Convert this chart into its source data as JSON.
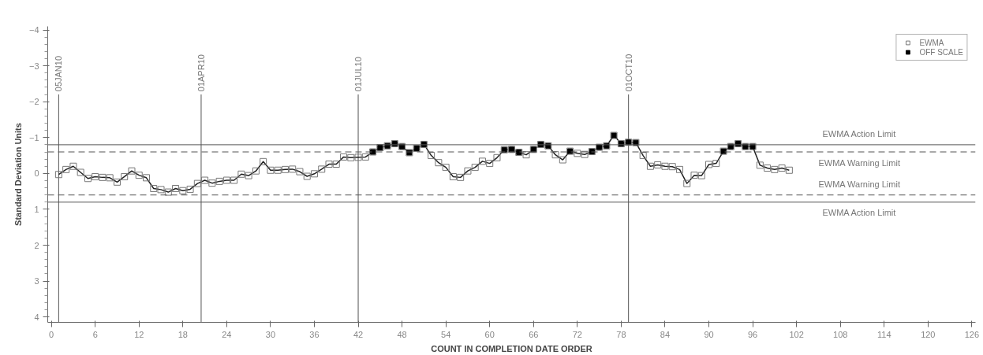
{
  "chart_data": {
    "type": "line",
    "xlabel": "COUNT IN COMPLETION DATE ORDER",
    "ylabel": "Standard Deviation Units",
    "xlim": [
      -0.5,
      126.5
    ],
    "xticks": [
      0,
      6,
      12,
      18,
      24,
      30,
      36,
      42,
      48,
      54,
      60,
      66,
      72,
      78,
      84,
      90,
      96,
      102,
      108,
      114,
      120,
      126
    ],
    "ylim": [
      4.15,
      -4.1
    ],
    "yticks": [
      -4,
      -3,
      -2,
      -1,
      0,
      1,
      2,
      3,
      4
    ],
    "grid": false,
    "legend": "top right",
    "series": [
      {
        "name": "EWMA",
        "marker": "square",
        "color": "#222222",
        "x": [
          1,
          2,
          3,
          4,
          5,
          6,
          7,
          8,
          9,
          10,
          11,
          12,
          13,
          14,
          15,
          16,
          17,
          18,
          19,
          20,
          21,
          22,
          23,
          24,
          25,
          26,
          27,
          28,
          29,
          30,
          31,
          32,
          33,
          34,
          35,
          36,
          37,
          38,
          39,
          40,
          41,
          42,
          43,
          44,
          45,
          46,
          47,
          48,
          49,
          50,
          51,
          52,
          53,
          54,
          55,
          56,
          57,
          58,
          59,
          60,
          61,
          62,
          63,
          64,
          65,
          66,
          67,
          68,
          69,
          70,
          71,
          72,
          73,
          74,
          75,
          76,
          77,
          78,
          79,
          80,
          81,
          82,
          83,
          84,
          85,
          86,
          87,
          88,
          89,
          90,
          91,
          92,
          93,
          94,
          95,
          96,
          97,
          98,
          99,
          100,
          101
        ],
        "values": [
          0.03,
          -0.11,
          -0.2,
          -0.03,
          0.14,
          0.09,
          0.11,
          0.12,
          0.24,
          0.09,
          -0.07,
          0.05,
          0.12,
          0.42,
          0.45,
          0.52,
          0.42,
          0.48,
          0.44,
          0.28,
          0.19,
          0.27,
          0.22,
          0.19,
          0.19,
          0.02,
          0.06,
          -0.07,
          -0.33,
          -0.09,
          -0.09,
          -0.11,
          -0.12,
          -0.05,
          0.08,
          0.01,
          -0.12,
          -0.26,
          -0.26,
          -0.46,
          -0.44,
          -0.45,
          -0.46,
          -0.6,
          -0.72,
          -0.77,
          -0.83,
          -0.75,
          -0.58,
          -0.7,
          -0.81,
          -0.5,
          -0.3,
          -0.17,
          0.09,
          0.11,
          -0.07,
          -0.17,
          -0.34,
          -0.28,
          -0.44,
          -0.66,
          -0.67,
          -0.59,
          -0.52,
          -0.67,
          -0.81,
          -0.77,
          -0.52,
          -0.38,
          -0.62,
          -0.56,
          -0.53,
          -0.61,
          -0.73,
          -0.77,
          -1.06,
          -0.83,
          -0.87,
          -0.86,
          -0.5,
          -0.2,
          -0.24,
          -0.2,
          -0.19,
          -0.11,
          0.28,
          0.05,
          0.06,
          -0.25,
          -0.28,
          -0.62,
          -0.75,
          -0.83,
          -0.75,
          -0.75,
          -0.23,
          -0.15,
          -0.11,
          -0.15,
          -0.09
        ]
      },
      {
        "name": "OFF SCALE",
        "type": "scatter",
        "marker": "square",
        "color": "#000000",
        "x": [
          44,
          45,
          46,
          47,
          48,
          49,
          50,
          51,
          62,
          63,
          64,
          66,
          67,
          68,
          71,
          74,
          75,
          76,
          77,
          78,
          79,
          80,
          92,
          93,
          94,
          95,
          96
        ],
        "values": [
          -0.6,
          -0.72,
          -0.77,
          -0.83,
          -0.75,
          -0.58,
          -0.7,
          -0.81,
          -0.66,
          -0.67,
          -0.59,
          -0.67,
          -0.81,
          -0.77,
          -0.62,
          -0.61,
          -0.73,
          -0.77,
          -1.06,
          -0.83,
          -0.87,
          -0.86,
          -0.62,
          -0.75,
          -0.83,
          -0.75,
          -0.75
        ]
      }
    ],
    "ref_lines": [
      {
        "axis": "y",
        "value": -0.8,
        "label": "EWMA Action Limit",
        "color": "#555555",
        "line_style": "solid"
      },
      {
        "axis": "y",
        "value": -0.6,
        "label": "EWMA Warning Limit",
        "color": "#555555",
        "line_style": "dashed"
      },
      {
        "axis": "y",
        "value": 0.6,
        "label": "EWMA Warning Limit",
        "color": "#555555",
        "line_style": "dashed"
      },
      {
        "axis": "y",
        "value": 0.8,
        "label": "EWMA Action Limit",
        "color": "#555555",
        "line_style": "solid"
      },
      {
        "axis": "x",
        "value": 1,
        "label": "05JAN10",
        "color": "#555555",
        "line_style": "solid"
      },
      {
        "axis": "x",
        "value": 20.5,
        "label": "01APR10",
        "color": "#555555",
        "line_style": "solid"
      },
      {
        "axis": "x",
        "value": 42,
        "label": "01JUL10",
        "color": "#555555",
        "line_style": "solid"
      },
      {
        "axis": "x",
        "value": 79,
        "label": "01OCT10",
        "color": "#555555",
        "line_style": "solid"
      }
    ]
  }
}
